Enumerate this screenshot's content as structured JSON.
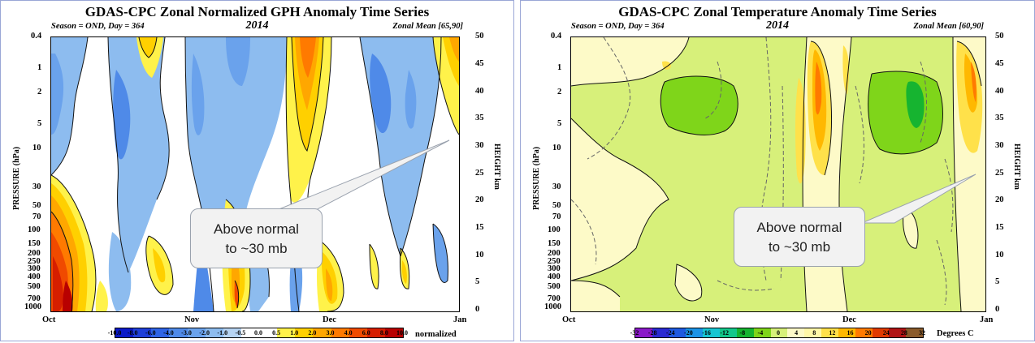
{
  "left": {
    "title": "GDAS-CPC Zonal Normalized GPH Anomaly Time Series",
    "season": "Season = OND, Day = 364",
    "year": "2014",
    "zonal_mean": "Zonal Mean [65,90]",
    "ylabel_left": "PRESSURE (hPa)",
    "ylabel_right": "HEIGHT km",
    "colorbar_unit": "normalized",
    "callout": [
      "Above normal",
      "to ~30 mb"
    ]
  },
  "right": {
    "title": "GDAS-CPC Zonal Temperature Anomaly Time Series",
    "season": "Season = OND, Day = 364",
    "year": "2014",
    "zonal_mean": "Zonal Mean [60,90]",
    "ylabel_left": "PRESSURE (hPa)",
    "ylabel_right": "HEIGHT km",
    "colorbar_unit": "Degrees C",
    "callout": [
      "Above normal",
      "to ~30 mb"
    ]
  },
  "chart_data": [
    {
      "type": "heatmap",
      "title": "GDAS-CPC Zonal Normalized GPH Anomaly Time Series",
      "x_ticks": [
        "Oct",
        "Nov",
        "Dec",
        "Jan"
      ],
      "y_ticks_pressure_hPa": [
        "0.4",
        "1",
        "2",
        "5",
        "10",
        "30",
        "50",
        "70",
        "100",
        "150",
        "200",
        "250",
        "300",
        "400",
        "500",
        "700",
        "1000"
      ],
      "y_ticks_height_km": [
        "0",
        "5",
        "10",
        "15",
        "20",
        "25",
        "30",
        "35",
        "40",
        "45",
        "50"
      ],
      "colorbar": {
        "levels": [
          "-10.0",
          "-8.0",
          "-6.0",
          "-4.0",
          "-3.0",
          "-2.0",
          "-1.0",
          "-0.5",
          "0.0",
          "0.5",
          "1.0",
          "2.0",
          "3.0",
          "4.0",
          "6.0",
          "8.0",
          "10.0"
        ],
        "colors": [
          "#0b1ac8",
          "#1f3fd9",
          "#2f64e6",
          "#4f8ae8",
          "#6aa2ec",
          "#8dbcef",
          "#b6d4f3",
          "#ffffff",
          "#ffffff",
          "#fff24a",
          "#ffd000",
          "#ffa700",
          "#ff7a00",
          "#f04a00",
          "#d61e00",
          "#b80000"
        ]
      }
    },
    {
      "type": "heatmap",
      "title": "GDAS-CPC Zonal Temperature Anomaly Time Series",
      "x_ticks": [
        "Oct",
        "Nov",
        "Dec",
        "Jan"
      ],
      "y_ticks_pressure_hPa": [
        "0.4",
        "1",
        "2",
        "5",
        "10",
        "30",
        "50",
        "70",
        "100",
        "150",
        "200",
        "250",
        "300",
        "400",
        "500",
        "700",
        "1000"
      ],
      "y_ticks_height_km": [
        "0",
        "5",
        "10",
        "15",
        "20",
        "25",
        "30",
        "35",
        "40",
        "45",
        "50"
      ],
      "colorbar": {
        "levels": [
          "-32",
          "-28",
          "-24",
          "-20",
          "-16",
          "-12",
          "-8",
          "-4",
          "0",
          "4",
          "8",
          "12",
          "16",
          "20",
          "24",
          "28",
          "32"
        ],
        "colors": [
          "#8a19c8",
          "#2a2ad2",
          "#1e5ae0",
          "#1b93e6",
          "#18c6d2",
          "#14c88a",
          "#16b430",
          "#7fd51a",
          "#d7f07a",
          "#fdfac8",
          "#fff8a8",
          "#ffe14a",
          "#ffb800",
          "#ff7a00",
          "#e03a00",
          "#b01414",
          "#8a5a2a"
        ]
      }
    }
  ]
}
